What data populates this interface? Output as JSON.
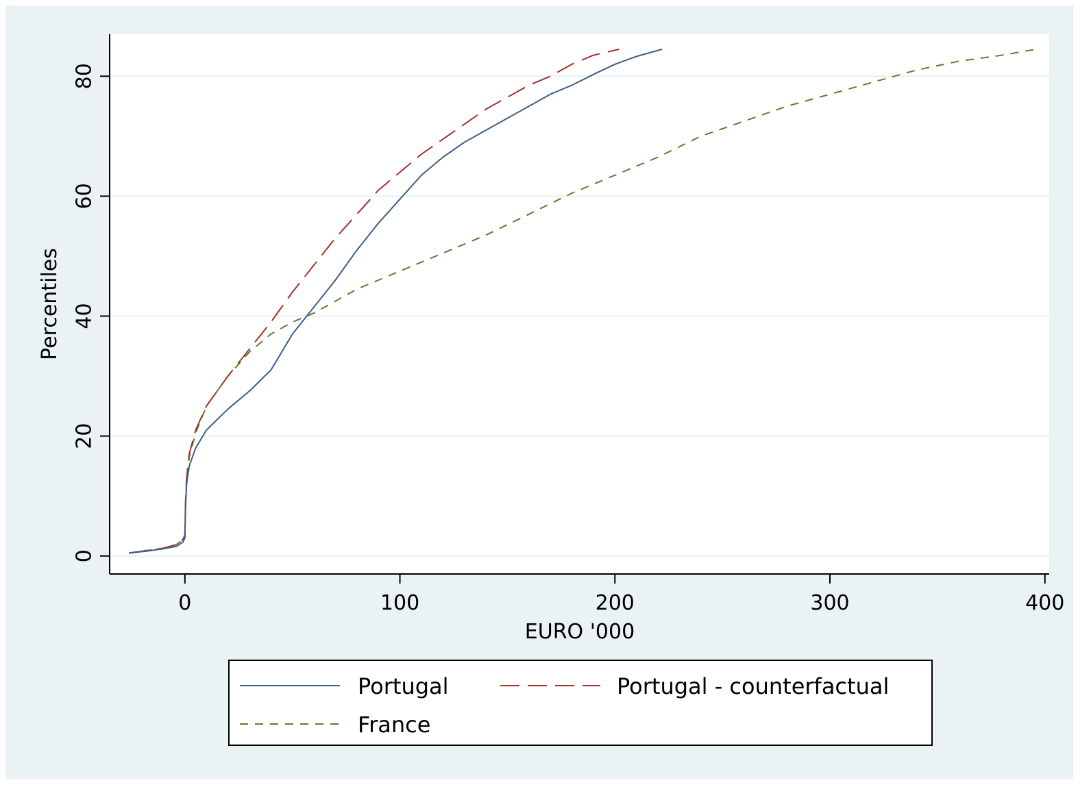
{
  "chart_data": {
    "type": "line",
    "title": "",
    "xlabel": "EURO '000",
    "ylabel": "Percentiles",
    "xlim": [
      -35,
      402
    ],
    "ylim": [
      -3,
      87
    ],
    "xticks": [
      0,
      100,
      200,
      300,
      400
    ],
    "yticks": [
      0,
      20,
      40,
      60,
      80
    ],
    "x_tick_labels": [
      "0",
      "100",
      "200",
      "300",
      "400"
    ],
    "y_tick_labels": [
      "0",
      "20",
      "40",
      "60",
      "80"
    ],
    "grid": true,
    "legend": "bottom",
    "series": [
      {
        "name": "Portugal",
        "color": "#3b5f88",
        "style": "solid",
        "points": [
          [
            -26,
            0.5
          ],
          [
            -18,
            0.8
          ],
          [
            -10,
            1.2
          ],
          [
            -4,
            1.6
          ],
          [
            -1,
            2.3
          ],
          [
            0,
            3
          ],
          [
            0.3,
            8
          ],
          [
            0.8,
            12
          ],
          [
            2,
            15
          ],
          [
            5,
            18
          ],
          [
            10,
            21
          ],
          [
            20,
            24.5
          ],
          [
            30,
            27.5
          ],
          [
            40,
            31
          ],
          [
            50,
            37
          ],
          [
            60,
            41.5
          ],
          [
            70,
            46
          ],
          [
            80,
            51
          ],
          [
            90,
            55.5
          ],
          [
            100,
            59.5
          ],
          [
            110,
            63.5
          ],
          [
            120,
            66.5
          ],
          [
            130,
            69
          ],
          [
            140,
            71
          ],
          [
            150,
            73
          ],
          [
            160,
            75
          ],
          [
            170,
            77
          ],
          [
            180,
            78.5
          ],
          [
            190,
            80.3
          ],
          [
            200,
            82
          ],
          [
            210,
            83.3
          ],
          [
            222,
            84.5
          ]
        ]
      },
      {
        "name": "Portugal - counterfactual",
        "color": "#a0322c",
        "style": "longdash",
        "points": [
          [
            -26,
            0.5
          ],
          [
            -18,
            0.9
          ],
          [
            -10,
            1.3
          ],
          [
            -4,
            1.9
          ],
          [
            -1,
            2.7
          ],
          [
            0,
            3.5
          ],
          [
            0.3,
            9
          ],
          [
            0.8,
            13
          ],
          [
            2,
            17
          ],
          [
            5,
            21
          ],
          [
            10,
            25
          ],
          [
            20,
            30
          ],
          [
            30,
            34.5
          ],
          [
            40,
            39
          ],
          [
            50,
            44
          ],
          [
            60,
            48.5
          ],
          [
            70,
            53
          ],
          [
            80,
            57
          ],
          [
            90,
            61
          ],
          [
            100,
            64
          ],
          [
            110,
            67
          ],
          [
            120,
            69.5
          ],
          [
            130,
            72
          ],
          [
            140,
            74.5
          ],
          [
            150,
            76.5
          ],
          [
            160,
            78.5
          ],
          [
            170,
            80
          ],
          [
            180,
            82
          ],
          [
            190,
            83.5
          ],
          [
            202,
            84.5
          ]
        ]
      },
      {
        "name": "France",
        "color": "#5a7e2e",
        "style": "dash",
        "points": [
          [
            -26,
            0.5
          ],
          [
            -18,
            0.9
          ],
          [
            -10,
            1.3
          ],
          [
            -4,
            1.9
          ],
          [
            -1,
            2.7
          ],
          [
            0,
            3.5
          ],
          [
            0.3,
            8.5
          ],
          [
            0.8,
            12.5
          ],
          [
            2,
            16.5
          ],
          [
            5,
            20.5
          ],
          [
            10,
            25
          ],
          [
            20,
            30
          ],
          [
            30,
            34
          ],
          [
            40,
            37
          ],
          [
            50,
            39
          ],
          [
            60,
            40.5
          ],
          [
            70,
            42.5
          ],
          [
            80,
            44.5
          ],
          [
            90,
            46
          ],
          [
            100,
            47.5
          ],
          [
            120,
            50.5
          ],
          [
            140,
            53.5
          ],
          [
            160,
            57
          ],
          [
            180,
            60.5
          ],
          [
            200,
            63.5
          ],
          [
            220,
            66.5
          ],
          [
            240,
            70
          ],
          [
            260,
            72.5
          ],
          [
            280,
            75
          ],
          [
            300,
            77
          ],
          [
            320,
            79
          ],
          [
            340,
            81
          ],
          [
            360,
            82.5
          ],
          [
            380,
            83.5
          ],
          [
            396,
            84.5
          ]
        ]
      }
    ]
  }
}
